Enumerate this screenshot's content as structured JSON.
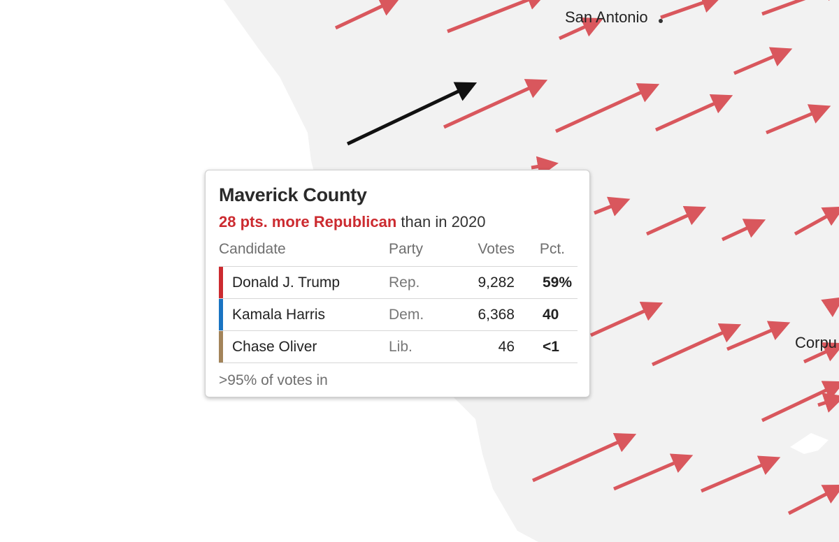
{
  "map": {
    "land_color": "#f2f2f2",
    "water_color": "#ffffff",
    "arrow_color": "#d9575d",
    "highlight_arrow_color": "#111111",
    "cities": [
      {
        "name": "San Antonio"
      },
      {
        "name": "Corpu"
      }
    ]
  },
  "tooltip": {
    "county": "Maverick County",
    "shift_strong": "28 pts. more Republican",
    "shift_rest": " than in 2020",
    "headers": {
      "candidate": "Candidate",
      "party": "Party",
      "votes": "Votes",
      "pct": "Pct."
    },
    "rows": [
      {
        "candidate": "Donald J. Trump",
        "party": "Rep.",
        "votes": "9,282",
        "pct": "59%",
        "color": "#cc2b30"
      },
      {
        "candidate": "Kamala Harris",
        "party": "Dem.",
        "votes": "6,368",
        "pct": "40",
        "color": "#1a74c2"
      },
      {
        "candidate": "Chase Oliver",
        "party": "Lib.",
        "votes": "46",
        "pct": "<1",
        "color": "#a3845a"
      }
    ],
    "footer": ">95% of votes in"
  }
}
